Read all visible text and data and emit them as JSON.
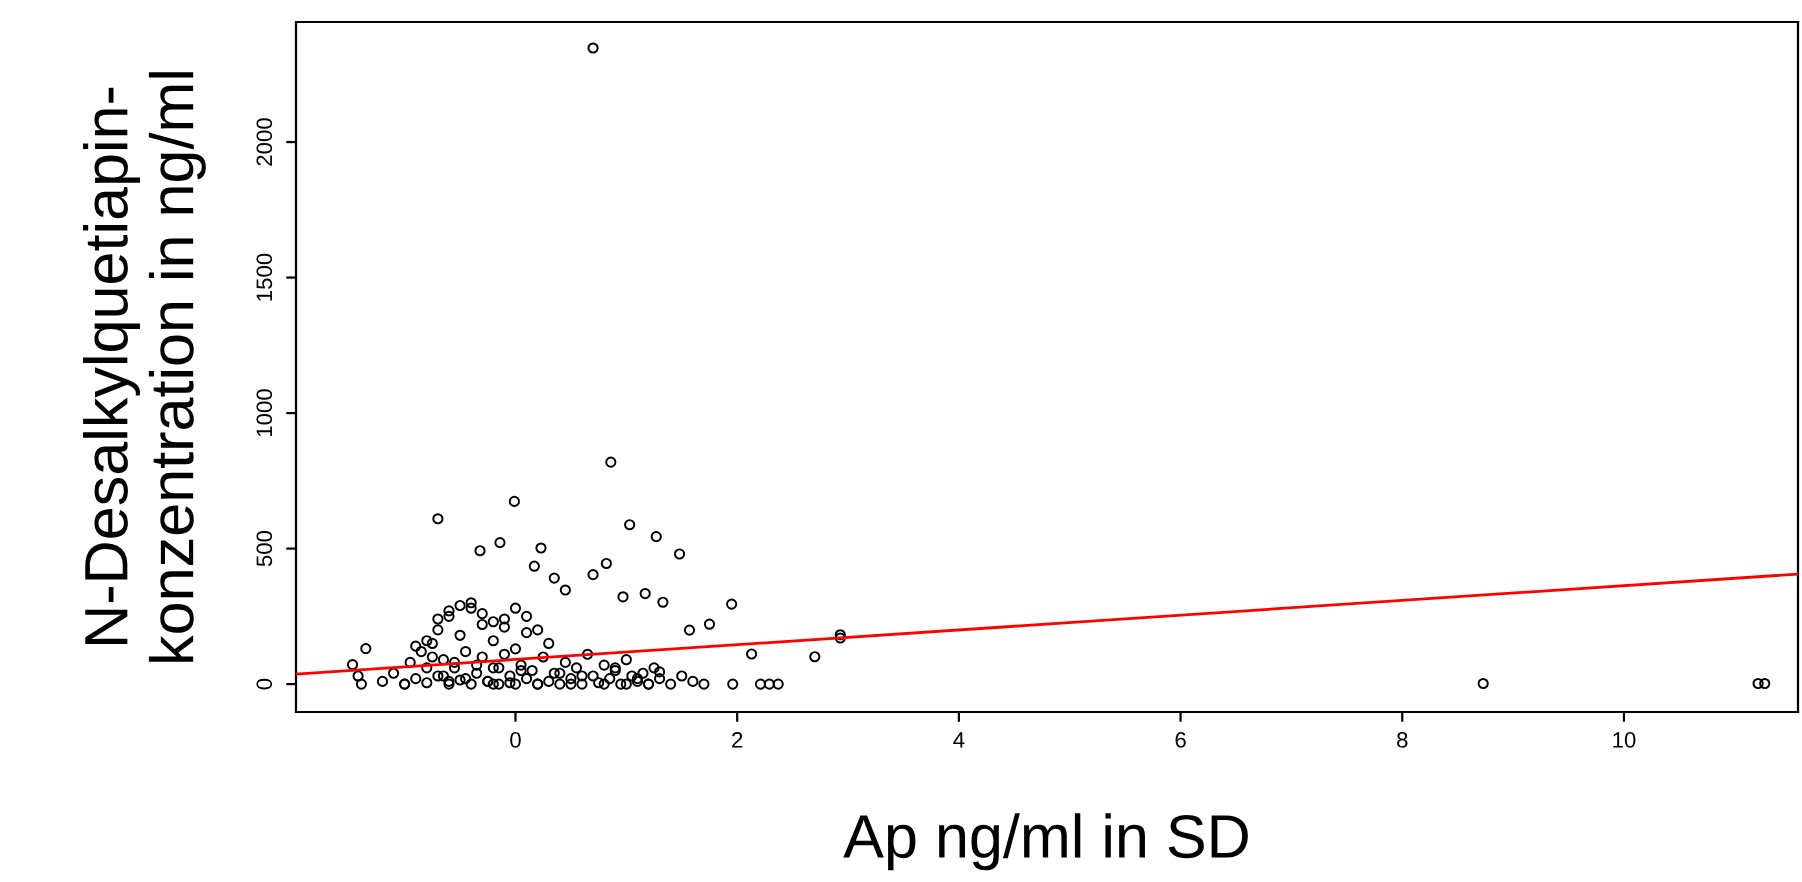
{
  "chart_data": {
    "type": "scatter",
    "xlabel": "Ap ng/ml in SD",
    "ylabel": "N-Desalkylquetiapin-\nkonzentration in ng/ml",
    "xlim": [
      -1.98,
      11.57
    ],
    "ylim": [
      -103,
      2443
    ],
    "xticks": [
      0,
      2,
      4,
      6,
      8,
      10
    ],
    "yticks": [
      0,
      500,
      1000,
      1500,
      2000
    ],
    "grid": false,
    "legend": false,
    "series": [
      {
        "color": "#000000",
        "marker": "circle",
        "x": [
          0.7,
          0.86,
          -0.7,
          -0.01,
          1.03,
          1.27,
          1.48,
          0.23,
          -0.14,
          -0.32,
          0.17,
          0.35,
          0.7,
          0.82,
          0.45,
          0.97,
          1.17,
          1.33,
          1.95,
          1.75,
          1.57,
          2.13,
          2.7,
          2.93,
          2.93,
          1.96,
          2.21,
          2.37,
          2.29,
          -1.35,
          -1.47,
          -1.42,
          -1.39,
          8.73,
          11.21,
          11.27,
          -1.2,
          -1.1,
          -1.0,
          -0.95,
          -0.9,
          -0.85,
          -0.8,
          -0.8,
          -0.75,
          -0.7,
          -0.7,
          -0.65,
          -0.6,
          -0.6,
          -0.55,
          -0.5,
          -0.5,
          -0.45,
          -0.4,
          -0.4,
          -0.35,
          -0.3,
          -0.3,
          -0.25,
          -0.2,
          -0.2,
          -0.15,
          -0.1,
          -0.1,
          -0.05,
          0.0,
          0.0,
          0.05,
          0.1,
          0.1,
          0.15,
          0.2,
          0.25,
          0.3,
          0.3,
          0.35,
          0.4,
          0.45,
          0.5,
          0.55,
          0.6,
          0.65,
          0.7,
          0.75,
          0.8,
          0.85,
          0.9,
          0.95,
          1.0,
          1.05,
          1.1,
          1.15,
          1.2,
          1.25,
          1.3,
          1.4,
          1.5,
          1.6,
          1.7,
          -0.9,
          -0.8,
          -0.7,
          -0.6,
          -0.5,
          -0.4,
          -0.3,
          -0.2,
          -0.1,
          0.0,
          0.1,
          0.2,
          -0.75,
          -0.55,
          -0.35,
          -0.15,
          0.05,
          -0.65,
          -0.45,
          -0.25,
          -0.05,
          0.4,
          0.6,
          0.9,
          1.1,
          1.3,
          -1.0,
          -0.6,
          -0.2,
          0.2,
          0.5,
          0.8,
          1.0,
          1.2
        ],
        "values": [
          2347,
          819,
          610,
          674,
          588,
          544,
          480,
          502,
          522,
          492,
          435,
          391,
          404,
          445,
          347,
          322,
          334,
          302,
          295,
          221,
          199,
          111,
          101,
          182,
          170,
          0,
          0,
          0,
          0,
          131,
          72,
          30,
          0,
          2,
          2,
          2,
          10,
          40,
          0,
          80,
          20,
          120,
          5,
          60,
          150,
          30,
          200,
          90,
          10,
          250,
          60,
          15,
          180,
          120,
          0,
          280,
          40,
          100,
          220,
          10,
          160,
          60,
          0,
          240,
          110,
          30,
          0,
          130,
          70,
          20,
          190,
          50,
          0,
          100,
          10,
          150,
          40,
          0,
          80,
          20,
          60,
          0,
          110,
          30,
          5,
          70,
          20,
          50,
          0,
          90,
          30,
          10,
          40,
          0,
          60,
          20,
          0,
          30,
          10,
          0,
          140,
          160,
          240,
          270,
          290,
          300,
          260,
          230,
          210,
          280,
          250,
          200,
          100,
          80,
          70,
          60,
          50,
          30,
          20,
          10,
          5,
          40,
          30,
          60,
          20,
          45,
          0,
          0,
          0,
          0,
          0,
          0,
          0,
          0
        ]
      },
      {
        "type": "line",
        "color": "#ff0000",
        "x": [
          -1.98,
          11.57
        ],
        "values": [
          37,
          406
        ]
      }
    ]
  }
}
